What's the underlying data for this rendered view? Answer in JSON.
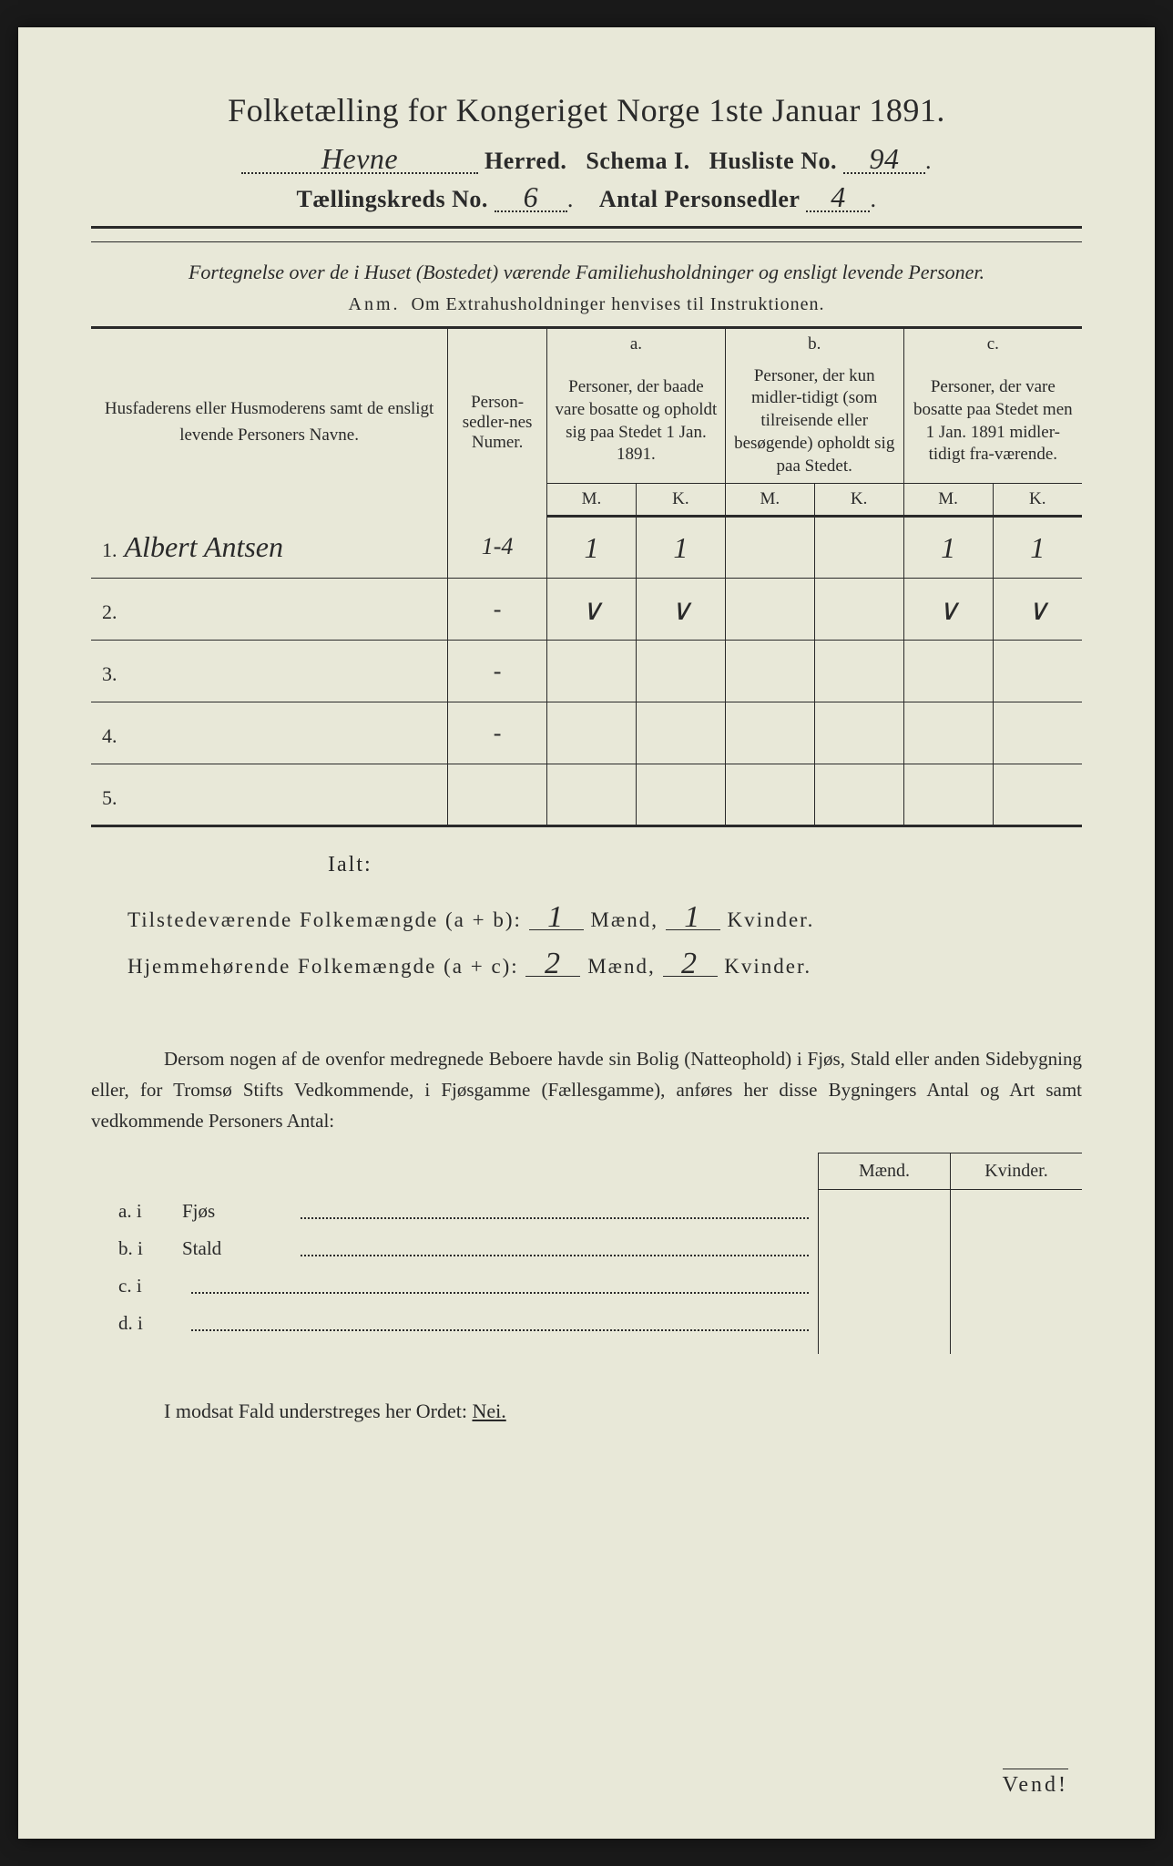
{
  "title": "Folketælling for Kongeriget Norge 1ste Januar 1891.",
  "herred_value": "Hevne",
  "herred_label": "Herred.",
  "schema_label": "Schema I.",
  "husliste_label": "Husliste No.",
  "husliste_value": "94",
  "kreds_label": "Tællingskreds No.",
  "kreds_value": "6",
  "personsedler_label": "Antal Personsedler",
  "personsedler_value": "4",
  "subtitle": "Fortegnelse over de i Huset (Bostedet) værende Familiehusholdninger og ensligt levende Personer.",
  "anm_prefix": "Anm.",
  "anm_text": "Om Extrahusholdninger henvises til Instruktionen.",
  "col_name": "Husfaderens eller Husmoderens samt de ensligt levende Personers Navne.",
  "col_num": "Person-sedler-nes Numer.",
  "col_a_label": "a.",
  "col_a_text": "Personer, der baade vare bosatte og opholdt sig paa Stedet 1 Jan. 1891.",
  "col_b_label": "b.",
  "col_b_text": "Personer, der kun midler-tidigt (som tilreisende eller besøgende) opholdt sig paa Stedet.",
  "col_c_label": "c.",
  "col_c_text": "Personer, der vare bosatte paa Stedet men 1 Jan. 1891 midler-tidigt fra-værende.",
  "mk_m": "M.",
  "mk_k": "K.",
  "rows": [
    {
      "n": "1.",
      "name": "Albert Antsen",
      "num": "1-4",
      "am": "1",
      "ak": "1",
      "bm": "",
      "bk": "",
      "cm": "1",
      "ck": "1"
    },
    {
      "n": "2.",
      "name": "",
      "num": "-",
      "am": "∨",
      "ak": "∨",
      "bm": "",
      "bk": "",
      "cm": "∨",
      "ck": "∨"
    },
    {
      "n": "3.",
      "name": "",
      "num": "-",
      "am": "",
      "ak": "",
      "bm": "",
      "bk": "",
      "cm": "",
      "ck": ""
    },
    {
      "n": "4.",
      "name": "",
      "num": "-",
      "am": "",
      "ak": "",
      "bm": "",
      "bk": "",
      "cm": "",
      "ck": ""
    },
    {
      "n": "5.",
      "name": "",
      "num": "",
      "am": "",
      "ak": "",
      "bm": "",
      "bk": "",
      "cm": "",
      "ck": ""
    }
  ],
  "ialt": "Ialt:",
  "tot1_label": "Tilstedeværende Folkemængde (a + b):",
  "tot1_m": "1",
  "tot1_k": "1",
  "tot2_label": "Hjemmehørende Folkemængde (a + c):",
  "tot2_m": "2",
  "tot2_k": "2",
  "maend": "Mænd,",
  "kvinder": "Kvinder.",
  "para": "Dersom nogen af de ovenfor medregnede Beboere havde sin Bolig (Natteophold) i Fjøs, Stald eller anden Sidebygning eller, for Tromsø Stifts Vedkommende, i Fjøsgamme (Fællesgamme), anføres her disse Bygningers Antal og Art samt vedkommende Personers Antal:",
  "mk_header_m": "Mænd.",
  "mk_header_k": "Kvinder.",
  "abcd": [
    {
      "l": "a.  i",
      "t": "Fjøs"
    },
    {
      "l": "b.  i",
      "t": "Stald"
    },
    {
      "l": "c.  i",
      "t": ""
    },
    {
      "l": "d.  i",
      "t": ""
    }
  ],
  "nei_line_pre": "I modsat Fald understreges her Ordet: ",
  "nei": "Nei.",
  "vend": "Vend!"
}
